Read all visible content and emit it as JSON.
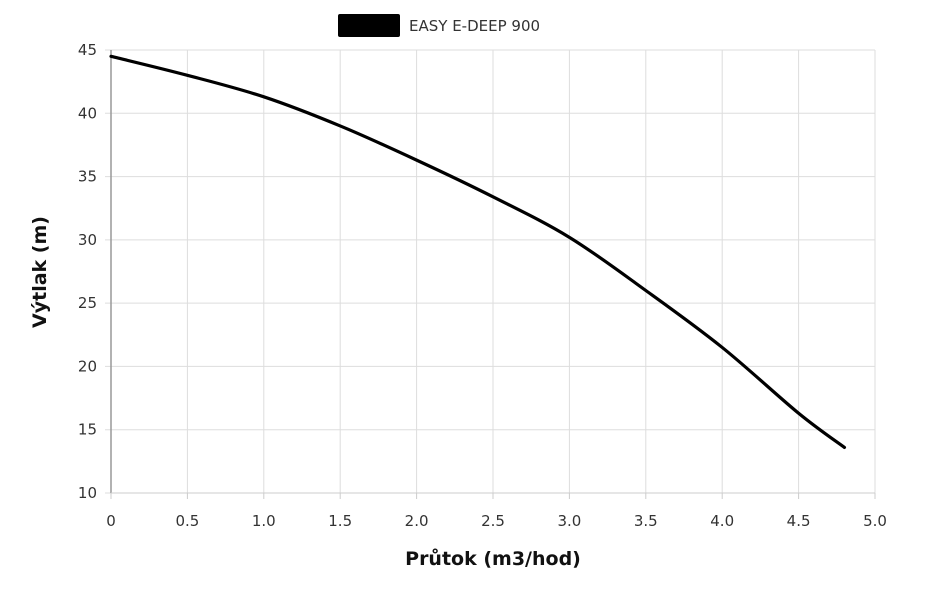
{
  "chart_data": {
    "type": "line",
    "title": "",
    "xlabel": "Průtok (m3/hod)",
    "ylabel": "Výtlak (m)",
    "xlim": [
      0,
      5.0
    ],
    "ylim": [
      10,
      45
    ],
    "x_ticks": [
      "0",
      "0.5",
      "1.0",
      "1.5",
      "2.0",
      "2.5",
      "3.0",
      "3.5",
      "4.0",
      "4.5",
      "5.0"
    ],
    "y_ticks": [
      "10",
      "15",
      "20",
      "25",
      "30",
      "35",
      "40",
      "45"
    ],
    "grid": true,
    "legend_position": "top-center",
    "series": [
      {
        "name": "EASY E-DEEP 900",
        "color": "#000000",
        "x": [
          0,
          0.5,
          1.0,
          1.5,
          2.0,
          2.5,
          3.0,
          3.5,
          4.0,
          4.5,
          4.8
        ],
        "y": [
          44.5,
          43.0,
          41.3,
          39.0,
          36.3,
          33.4,
          30.2,
          26.0,
          21.5,
          16.3,
          13.6
        ]
      }
    ]
  }
}
